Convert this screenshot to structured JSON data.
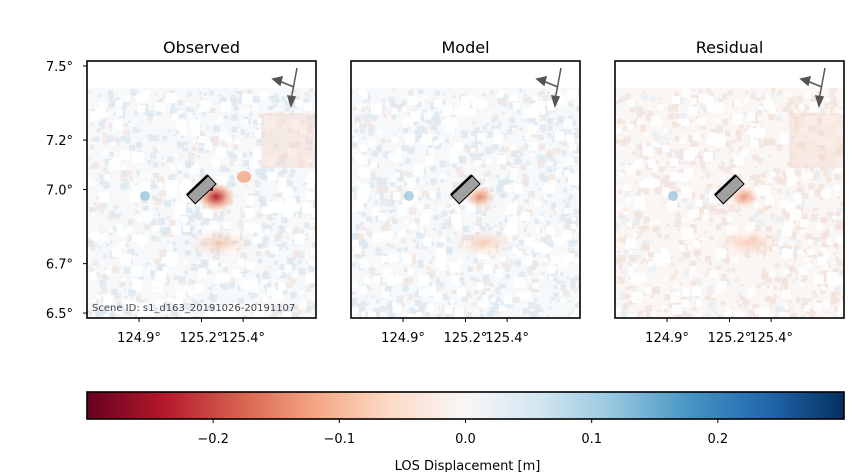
{
  "chart_data": {
    "type": "heatmap",
    "panels": [
      {
        "title": "Observed",
        "scene_id": "Scene ID: s1_d163_20191026-20191107"
      },
      {
        "title": "Model",
        "scene_id": ""
      },
      {
        "title": "Residual",
        "scene_id": ""
      }
    ],
    "y_ticks": [
      {
        "value": 6.5,
        "label": "6.5°"
      },
      {
        "value": 6.7,
        "label": "6.7°"
      },
      {
        "value": 7.0,
        "label": "7.0°"
      },
      {
        "value": 7.2,
        "label": "7.2°"
      },
      {
        "value": 7.5,
        "label": "7.5°"
      }
    ],
    "x_ticks": [
      {
        "value": 124.9,
        "label": "124.9°"
      },
      {
        "value": 125.2,
        "label": "125.2°"
      },
      {
        "value": 125.4,
        "label": "125.4°"
      }
    ],
    "xlim": [
      124.65,
      125.75
    ],
    "ylim": [
      6.48,
      7.52
    ],
    "fault": {
      "lon": [
        125.15,
        125.25
      ],
      "lat": [
        6.96,
        7.04
      ]
    },
    "deformation_center": {
      "lon": 125.27,
      "lat": 6.97
    },
    "colorbar": {
      "label": "LOS Displacement [m]",
      "colormap": "RdBu",
      "vmin": -0.3,
      "vmax": 0.3,
      "ticks": [
        {
          "value": -0.2,
          "label": "−0.2"
        },
        {
          "value": -0.1,
          "label": "−0.1"
        },
        {
          "value": 0.0,
          "label": "0.0"
        },
        {
          "value": 0.1,
          "label": "0.1"
        },
        {
          "value": 0.2,
          "label": "0.2"
        }
      ],
      "stops": [
        "#67001f",
        "#b2182b",
        "#d6604d",
        "#f4a582",
        "#fddbc7",
        "#f7f7f7",
        "#d1e5f0",
        "#92c5de",
        "#4393c3",
        "#2166ac",
        "#053061"
      ]
    }
  }
}
